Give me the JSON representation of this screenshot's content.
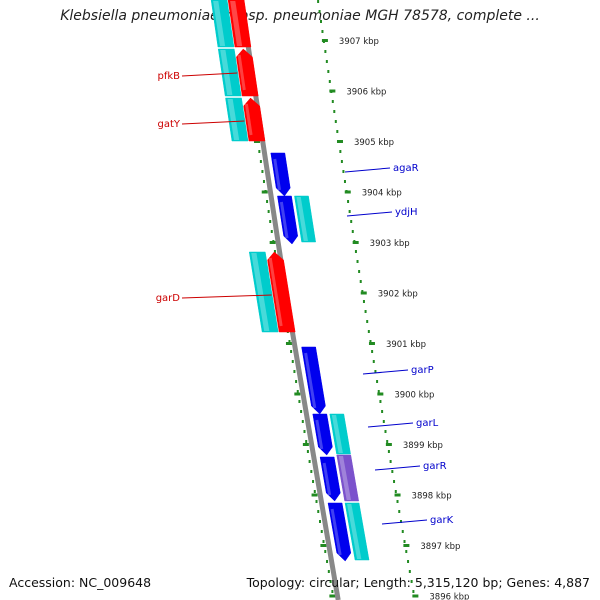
{
  "title": "Klebsiella pneumoniae subsp. pneumoniae MGH 78578, complete ...",
  "accession_text": "Accession: NC_009648",
  "summary_text": "Topology: circular; Length: 5,315,120 bp; Genes: 4,887",
  "colors": {
    "forward_gene": "#ff0000",
    "reverse_gene": "#0000ee",
    "cds": "#00cccc",
    "other_feature": "#7b52cc",
    "forward_label": "#cc0000",
    "reverse_label": "#0000cc",
    "backbone": "#888888",
    "tick": "#228b22"
  },
  "ticks": [
    {
      "kbp": 3907,
      "label": "3907 kbp"
    },
    {
      "kbp": 3906,
      "label": "3906 kbp"
    },
    {
      "kbp": 3905,
      "label": "3905 kbp"
    },
    {
      "kbp": 3904,
      "label": "3904 kbp"
    },
    {
      "kbp": 3903,
      "label": "3903 kbp"
    },
    {
      "kbp": 3902,
      "label": "3902 kbp"
    },
    {
      "kbp": 3901,
      "label": "3901 kbp"
    },
    {
      "kbp": 3900,
      "label": "3900 kbp"
    },
    {
      "kbp": 3899,
      "label": "3899 kbp"
    },
    {
      "kbp": 3898,
      "label": "3898 kbp"
    },
    {
      "kbp": 3897,
      "label": "3897 kbp"
    },
    {
      "kbp": 3896,
      "label": "3896 kbp"
    }
  ],
  "forward_genes": [
    {
      "name": "pfkB"
    },
    {
      "name": "gatY"
    },
    {
      "name": "garD"
    }
  ],
  "reverse_genes": [
    {
      "name": "agaR"
    },
    {
      "name": "ydjH"
    },
    {
      "name": "garP"
    },
    {
      "name": "garL"
    },
    {
      "name": "garR"
    },
    {
      "name": "garK"
    }
  ]
}
